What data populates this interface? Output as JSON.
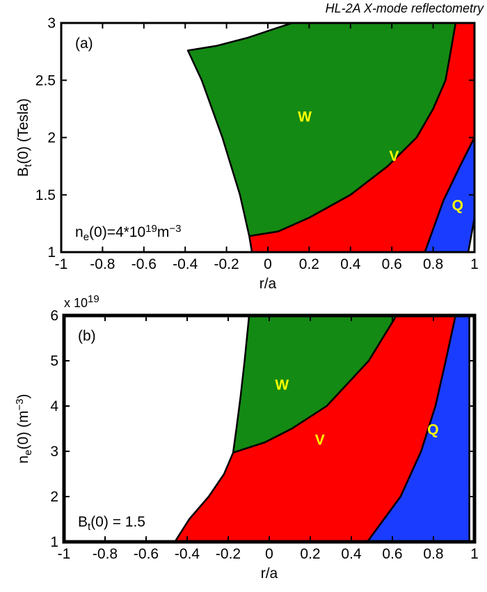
{
  "chart_data": [
    {
      "type": "area",
      "title": "HL-2A X-mode reflectometry",
      "panel_label": "(a)",
      "xlabel": "r/a",
      "ylabel": {
        "base": "B",
        "sub": "t",
        "rest": "(0) (Tesla)"
      },
      "annotation": {
        "base": "n",
        "sub": "e",
        "rest": "(0)=4*10",
        "sup": "19",
        "rest2": "m",
        "sup2": "−3"
      },
      "xlim": [
        -1,
        1
      ],
      "ylim": [
        1,
        3
      ],
      "xticks": [
        -1,
        -0.8,
        -0.6,
        -0.4,
        -0.2,
        0,
        0.2,
        0.4,
        0.6,
        0.8,
        1
      ],
      "yticks": [
        1,
        1.5,
        2,
        2.5,
        3
      ],
      "label_color": "#ffff00",
      "series": [
        {
          "name": "W",
          "color": "#138a13",
          "x": [
            -0.387,
            -0.25,
            -0.1,
            0.05,
            0.118,
            0.909,
            0.88,
            0.86,
            0.8,
            0.72,
            0.58,
            0.4,
            0.2,
            0.05,
            -0.09,
            -0.11,
            -0.135,
            -0.22,
            -0.32,
            -0.387
          ],
          "y": [
            2.76,
            2.8,
            2.87,
            2.96,
            3,
            3,
            2.7,
            2.5,
            2.25,
            2,
            1.75,
            1.5,
            1.3,
            1.18,
            1.14,
            1.3,
            1.5,
            2,
            2.5,
            2.76
          ]
        },
        {
          "name": "V",
          "color": "#ff0000",
          "x": [
            -0.09,
            0.05,
            0.2,
            0.4,
            0.58,
            0.72,
            0.8,
            0.86,
            0.88,
            0.909,
            1,
            1,
            0.93,
            0.85,
            0.76,
            -0.077
          ],
          "y": [
            1.14,
            1.18,
            1.3,
            1.5,
            1.75,
            2,
            2.25,
            2.5,
            2.7,
            3,
            3,
            2.0,
            1.75,
            1.45,
            1,
            1
          ]
        },
        {
          "name": "Q",
          "color": "#1a3cff",
          "x": [
            0.76,
            0.85,
            0.93,
            1,
            1,
            0.97
          ],
          "y": [
            1,
            1.45,
            1.75,
            2.0,
            1.3,
            1
          ]
        }
      ]
    },
    {
      "type": "area",
      "panel_label": "(b)",
      "xlabel": "r/a",
      "ylabel": {
        "base": "n",
        "sub": "e",
        "rest": "(0) (m",
        "sup": "−3",
        "rest2": ")"
      },
      "y_multiplier": {
        "base": "x 10",
        "sup": "19"
      },
      "annotation": {
        "base": "B",
        "sub": "t",
        "rest": "(0) = 1.5"
      },
      "xlim": [
        -1,
        1
      ],
      "ylim": [
        1,
        6
      ],
      "xticks": [
        -1,
        -0.8,
        -0.6,
        -0.4,
        -0.2,
        0,
        0.2,
        0.4,
        0.6,
        0.8,
        1
      ],
      "yticks": [
        1,
        2,
        3,
        4,
        5,
        6
      ],
      "label_color": "#ffff00",
      "series": [
        {
          "name": "W",
          "color": "#138a13",
          "x": [
            -0.098,
            0.62,
            0.485,
            0.28,
            0.11,
            -0.02,
            -0.176,
            -0.16,
            -0.14,
            -0.12,
            -0.098
          ],
          "y": [
            6,
            6,
            5,
            4,
            3.5,
            3.2,
            2.97,
            3.5,
            4.2,
            5,
            6
          ]
        },
        {
          "name": "V",
          "color": "#ff0000",
          "x": [
            -0.176,
            -0.02,
            0.11,
            0.28,
            0.485,
            0.62,
            0.908,
            0.86,
            0.81,
            0.74,
            0.64,
            0.478,
            -0.46,
            -0.39,
            -0.295,
            -0.22,
            -0.176
          ],
          "y": [
            2.97,
            3.2,
            3.5,
            4,
            5,
            6,
            6,
            5,
            4,
            3,
            2,
            1,
            1,
            1.5,
            2,
            2.5,
            2.97
          ]
        },
        {
          "name": "Q",
          "color": "#1a3cff",
          "x": [
            0.478,
            0.64,
            0.74,
            0.81,
            0.86,
            0.908,
            0.975,
            0.975
          ],
          "y": [
            1,
            2,
            3,
            4,
            5,
            6,
            6,
            1
          ]
        }
      ]
    }
  ]
}
